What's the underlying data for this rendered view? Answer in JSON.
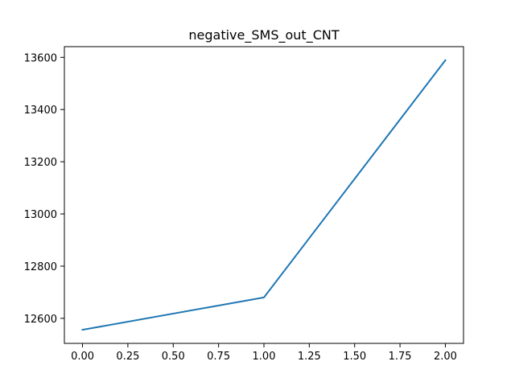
{
  "chart_data": {
    "type": "line",
    "title": "negative_SMS_out_CNT",
    "xlabel": "",
    "ylabel": "",
    "x": [
      0,
      1,
      2
    ],
    "series": [
      {
        "values": [
          12556,
          12680,
          13589
        ],
        "color": "#1f77b4"
      }
    ],
    "xlim": [
      -0.1,
      2.1
    ],
    "ylim": [
      12504,
      13641
    ],
    "xticks": [
      0.0,
      0.25,
      0.5,
      0.75,
      1.0,
      1.25,
      1.5,
      1.75,
      2.0
    ],
    "xtick_labels": [
      "0.00",
      "0.25",
      "0.50",
      "0.75",
      "1.00",
      "1.25",
      "1.50",
      "1.75",
      "2.00"
    ],
    "yticks": [
      12600,
      12800,
      13000,
      13200,
      13400,
      13600
    ],
    "ytick_labels": [
      "12600",
      "12800",
      "13000",
      "13200",
      "13400",
      "13600"
    ],
    "grid": false,
    "legend": "none"
  }
}
